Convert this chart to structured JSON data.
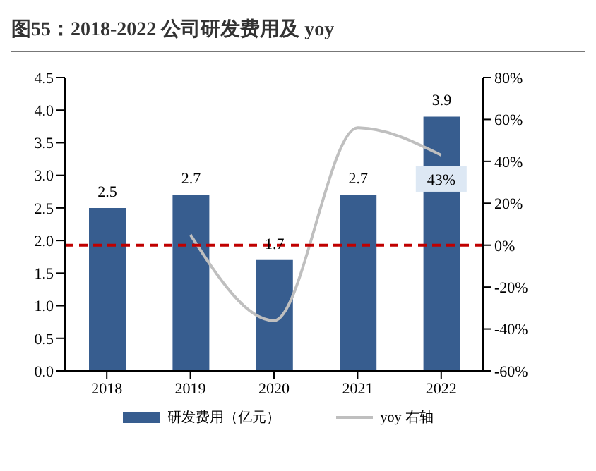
{
  "chart_data": {
    "type": "bar",
    "title": "图55：2018-2022 公司研发费用及 yoy",
    "categories": [
      "2018",
      "2019",
      "2020",
      "2021",
      "2022"
    ],
    "series": [
      {
        "name": "研发费用（亿元）",
        "color": "#375d8f",
        "values": [
          2.5,
          2.7,
          1.7,
          2.7,
          3.9
        ]
      },
      {
        "name": "yoy 右轴",
        "type": "line",
        "axis": "y2",
        "color": "#bfbfbf",
        "marker": "none",
        "values": [
          null,
          5,
          -36,
          56,
          43
        ],
        "value_labels": [
          null,
          null,
          null,
          null,
          "43%"
        ]
      }
    ],
    "data_labels": true,
    "ylim": [
      0,
      4.5
    ],
    "yticks": [
      {
        "value": 0,
        "label": "0.0"
      },
      {
        "value": 0.5,
        "label": "0.5"
      },
      {
        "value": 1,
        "label": "1.0"
      },
      {
        "value": 1.5,
        "label": "1.5"
      },
      {
        "value": 2,
        "label": "2.0"
      },
      {
        "value": 2.5,
        "label": "2.5"
      },
      {
        "value": 3,
        "label": "3.0"
      },
      {
        "value": 3.5,
        "label": "3.5"
      },
      {
        "value": 4,
        "label": "4.0"
      },
      {
        "value": 4.5,
        "label": "4.5"
      }
    ],
    "y2lim": [
      -60,
      80
    ],
    "y2ticks": [
      {
        "value": -60,
        "label": "-60%"
      },
      {
        "value": -40,
        "label": "-40%"
      },
      {
        "value": -20,
        "label": "-20%"
      },
      {
        "value": 0,
        "label": "0%"
      },
      {
        "value": 20,
        "label": "20%"
      },
      {
        "value": 40,
        "label": "40%"
      },
      {
        "value": 60,
        "label": "60%"
      },
      {
        "value": 80,
        "label": "80%"
      }
    ],
    "ref_lines": [
      {
        "axis": "y2",
        "value": 0,
        "color": "#c00000",
        "line_style": "dashed"
      }
    ],
    "grid": false,
    "legend": "bottom"
  }
}
